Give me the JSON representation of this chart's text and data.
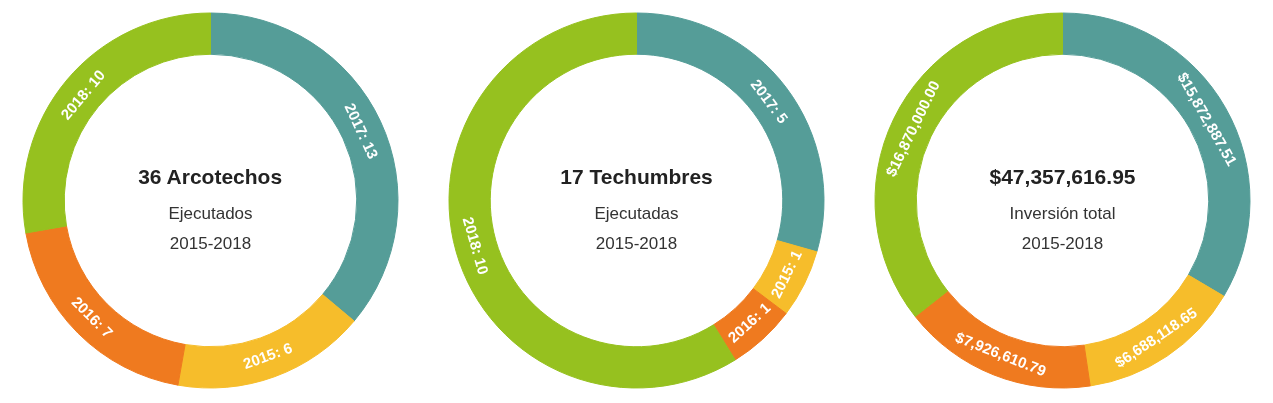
{
  "chart_data": [
    {
      "type": "donut",
      "title": "36 Arcotechos",
      "subtitle": "Ejecutados",
      "annotations": [
        "2015-2018"
      ],
      "categories": [
        null,
        null,
        null,
        null
      ],
      "values": [
        13,
        6,
        7,
        10
      ],
      "colors": [
        "#559d98",
        "#f6bd2b",
        "#ef7a1f",
        "#96c11f"
      ],
      "value_labels": [
        "2017: 13",
        "2015: 6",
        "2016: 7",
        "2018: 10"
      ]
    },
    {
      "type": "donut",
      "title": "17 Techumbres",
      "subtitle": "Ejecutadas",
      "annotations": [
        "2015-2018"
      ],
      "categories": [
        null,
        null,
        null,
        null
      ],
      "values": [
        5,
        1,
        1,
        10
      ],
      "colors": [
        "#559d98",
        "#f6bd2b",
        "#ef7a1f",
        "#96c11f"
      ],
      "value_labels": [
        "2017: 5",
        "2015: 1",
        "2016: 1",
        "2018: 10"
      ]
    },
    {
      "type": "donut",
      "title": "$47,357,616.95",
      "subtitle": "Inversión total",
      "annotations": [
        "2015-2018"
      ],
      "categories": [
        null,
        null,
        null,
        null
      ],
      "values": [
        15872887.51,
        6688118.65,
        7926610.79,
        16870000.0
      ],
      "colors": [
        "#559d98",
        "#f6bd2b",
        "#ef7a1f",
        "#96c11f"
      ],
      "value_labels": [
        "$15,872,887.51",
        "$6,688,118.65",
        "$7,926,610.79",
        "$16,870,000.00"
      ]
    }
  ]
}
